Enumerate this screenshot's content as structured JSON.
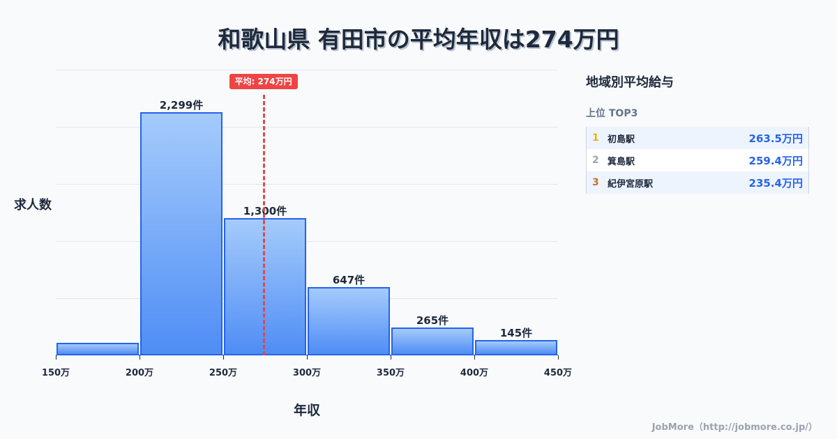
{
  "title": "和歌山県 有田市の平均年収は274万円",
  "chart_data": {
    "type": "bar",
    "title": "和歌山県 有田市の平均年収は274万円",
    "xlabel": "年収",
    "ylabel": "求人数",
    "categories": [
      "150-200万",
      "200-250万",
      "250-300万",
      "300-350万",
      "350-400万",
      "400-450万"
    ],
    "bin_edges": [
      150,
      200,
      250,
      300,
      350,
      400,
      450
    ],
    "values": [
      119,
      2299,
      1300,
      647,
      265,
      145
    ],
    "value_labels": [
      "",
      "2,299件",
      "1,300件",
      "647件",
      "265件",
      "145件"
    ],
    "x_tick_labels": [
      "150万",
      "200万",
      "250万",
      "300万",
      "350万",
      "400万",
      "450万"
    ],
    "mean": 274,
    "mean_label": "平均: 274万円",
    "grid": true,
    "ylim": [
      0,
      2700
    ],
    "colors": {
      "bar_top": "#a5cbfb",
      "bar_bottom": "#4f8df5",
      "bar_border": "#2563eb",
      "mean_line": "#e04848"
    }
  },
  "sidebar": {
    "title": "地域別平均給与",
    "subtitle": "上位 TOP3",
    "rows": [
      {
        "rank": "1",
        "name": "初島駅",
        "value": "263.5万円",
        "rank_color": "#eab308"
      },
      {
        "rank": "2",
        "name": "箕島駅",
        "value": "259.4万円",
        "rank_color": "#9ca3af"
      },
      {
        "rank": "3",
        "name": "紀伊宮原駅",
        "value": "235.4万円",
        "rank_color": "#c2702b"
      }
    ]
  },
  "footer": "JobMore（http://jobmore.co.jp/）"
}
